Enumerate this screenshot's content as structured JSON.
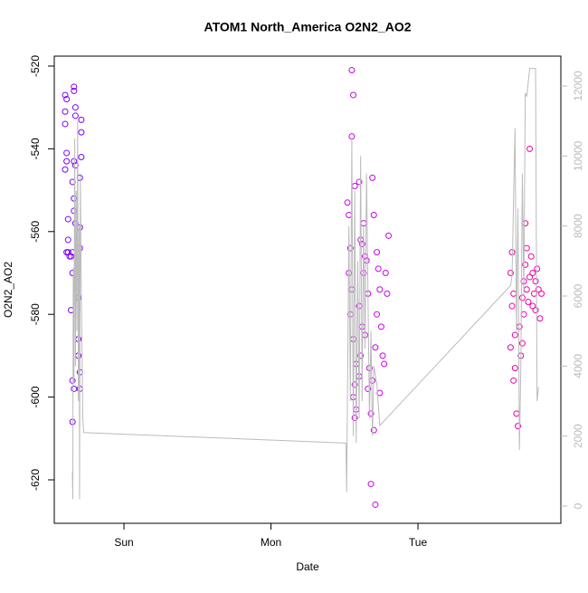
{
  "chart_data": {
    "type": "scatter",
    "title": "ATOM1 North_America O2N2_AO2",
    "xlabel": "Date",
    "ylabel": "O2N2_AO2",
    "xlim": [
      0.526,
      3.972
    ],
    "xticks": [
      {
        "value": 1,
        "label": "Sun"
      },
      {
        "value": 2,
        "label": "Mon"
      },
      {
        "value": 3,
        "label": "Tue"
      }
    ],
    "ylim": [
      -630.5,
      -517.6
    ],
    "yticks": [
      -620,
      -600,
      -580,
      -560,
      -540,
      -520
    ],
    "y2lim": [
      -491,
      12853
    ],
    "y2ticks": [
      0,
      2000,
      4000,
      6000,
      8000,
      10000,
      12000
    ],
    "series": [
      {
        "color": "#7f00ff",
        "x": [
          0.6,
          0.61,
          0.6,
          0.6,
          0.61,
          0.61,
          0.6,
          0.62,
          0.62,
          0.61,
          0.62,
          0.63,
          0.64,
          0.65,
          0.64,
          0.65,
          0.66,
          0.65,
          0.66,
          0.66,
          0.67,
          0.67,
          0.66,
          0.67,
          0.65,
          0.66,
          0.66,
          0.67,
          0.65,
          0.68,
          0.68,
          0.69,
          0.69,
          0.69,
          0.7,
          0.7,
          0.71,
          0.71,
          0.71,
          0.7,
          0.7,
          0.7
        ],
        "values": [
          -527,
          -528,
          -531,
          -534,
          -541,
          -543,
          -545,
          -557,
          -562,
          -565,
          -565,
          -566,
          -566,
          -570,
          -579,
          -596,
          -598,
          -606,
          -525,
          -526,
          -530,
          -532,
          -543,
          -544,
          -548,
          -552,
          -555,
          -558,
          -565,
          -567,
          -571,
          -576,
          -586,
          -590,
          -594,
          -598,
          -533,
          -536,
          -542,
          -547,
          -559,
          -564
        ]
      },
      {
        "color": "#cc00ee",
        "x": [
          2.55,
          2.56,
          2.55,
          2.57,
          2.52,
          2.53,
          2.54,
          2.53,
          2.55,
          2.54,
          2.56,
          2.58,
          2.57,
          2.56,
          2.58,
          2.57,
          2.6,
          2.61,
          2.62,
          2.6,
          2.63,
          2.64,
          2.62,
          2.61,
          2.6,
          2.63,
          2.65,
          2.66,
          2.64,
          2.67,
          2.66,
          2.68,
          2.7,
          2.69,
          2.71,
          2.72,
          2.73,
          2.74,
          2.69,
          2.7,
          2.72,
          2.75,
          2.76,
          2.68,
          2.71,
          2.78,
          2.79,
          2.77,
          2.8,
          2.74
        ],
        "values": [
          -521,
          -527,
          -537,
          -549,
          -553,
          -556,
          -564,
          -570,
          -574,
          -580,
          -586,
          -592,
          -597,
          -600,
          -603,
          -605,
          -595,
          -590,
          -583,
          -578,
          -570,
          -566,
          -563,
          -562,
          -548,
          -558,
          -567,
          -575,
          -585,
          -593,
          -598,
          -604,
          -608,
          -596,
          -588,
          -580,
          -569,
          -574,
          -547,
          -556,
          -565,
          -583,
          -590,
          -621,
          -626,
          -570,
          -575,
          -592,
          -561,
          -599
        ]
      },
      {
        "color": "#ee00aa",
        "x": [
          3.64,
          3.63,
          3.65,
          3.64,
          3.66,
          3.63,
          3.66,
          3.65,
          3.67,
          3.68,
          3.7,
          3.69,
          3.71,
          3.72,
          3.73,
          3.74,
          3.72,
          3.71,
          3.75,
          3.76,
          3.77,
          3.74,
          3.73,
          3.76,
          3.78,
          3.79,
          3.8,
          3.81,
          3.82,
          3.83,
          3.84,
          3.8,
          3.78
        ],
        "values": [
          -565,
          -570,
          -575,
          -578,
          -585,
          -588,
          -593,
          -596,
          -604,
          -607,
          -590,
          -583,
          -576,
          -572,
          -568,
          -574,
          -580,
          -587,
          -577,
          -571,
          -566,
          -564,
          -558,
          -540,
          -570,
          -575,
          -579,
          -569,
          -574,
          -581,
          -575,
          -572,
          -578
        ]
      },
      {
        "color": "#bbbbbb",
        "axis": "y2",
        "x": [
          0.649,
          0.652,
          0.655,
          0.66,
          0.665,
          0.67,
          0.675,
          0.68,
          0.685,
          0.69,
          0.695,
          0.698,
          0.703,
          0.71,
          0.716,
          0.72,
          0.726,
          2.51,
          2.515,
          2.53,
          2.54,
          2.55,
          2.56,
          2.57,
          2.58,
          2.59,
          2.6,
          2.61,
          2.62,
          2.63,
          2.64,
          2.65,
          2.66,
          2.67,
          2.68,
          2.69,
          2.7,
          2.72,
          2.74,
          3.63,
          3.64,
          3.66,
          3.67,
          3.68,
          3.69,
          3.7,
          3.71,
          3.72,
          3.73,
          3.74,
          3.76,
          3.8,
          3.81,
          3.82
        ],
        "values": [
          1000,
          200,
          6800,
          3500,
          10500,
          4000,
          9000,
          5000,
          11000,
          3000,
          8000,
          200,
          9500,
          6000,
          4000,
          2500,
          2100,
          1800,
          400,
          8000,
          3000,
          10500,
          2000,
          9000,
          1800,
          7000,
          2500,
          10000,
          3000,
          8000,
          4500,
          9500,
          6000,
          2500,
          5000,
          2000,
          4000,
          3500,
          2300,
          6300,
          6600,
          10800,
          5000,
          8500,
          1600,
          4000,
          9500,
          6000,
          11800,
          11700,
          12500,
          12500,
          3000,
          3400
        ]
      }
    ]
  }
}
